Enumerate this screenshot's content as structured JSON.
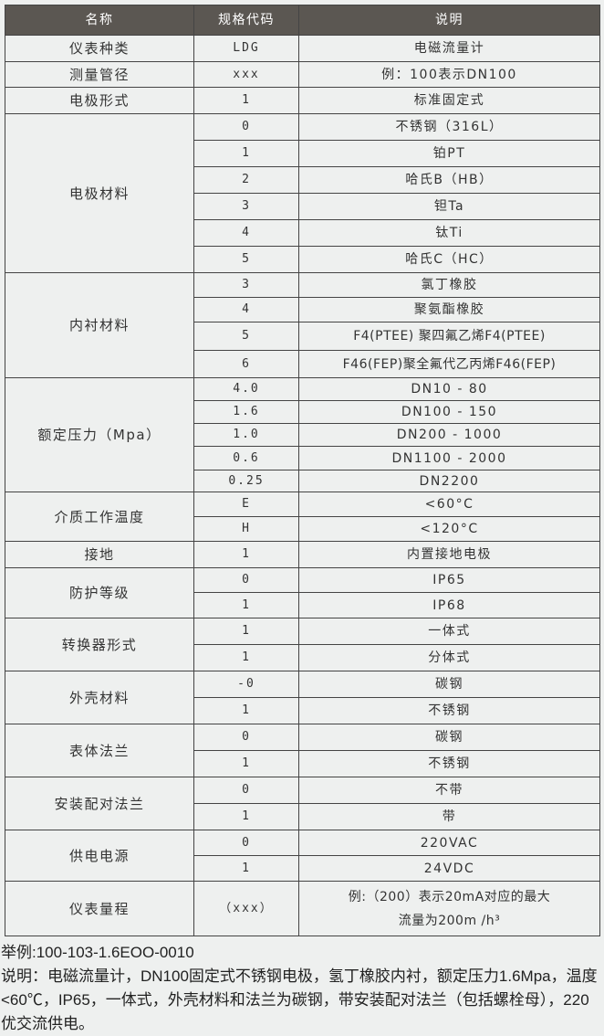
{
  "table": {
    "headers": [
      "名称",
      "规格代码",
      "说明"
    ],
    "groups": [
      {
        "name": "仪表种类",
        "rows": [
          [
            "LDG",
            "电磁流量计"
          ]
        ]
      },
      {
        "name": "测量管径",
        "rows": [
          [
            "xxx",
            "例：100表示DN100"
          ]
        ]
      },
      {
        "name": "电极形式",
        "rows": [
          [
            "1",
            "标准固定式"
          ]
        ]
      },
      {
        "name": "电极材料",
        "rows": [
          [
            "0",
            "不锈钢（316L）"
          ],
          [
            "1",
            "铂PT"
          ],
          [
            "2",
            "哈氏B（HB）"
          ],
          [
            "3",
            "钽Ta"
          ],
          [
            "4",
            "钛Ti"
          ],
          [
            "5",
            "哈氏C（HC）"
          ]
        ]
      },
      {
        "name": "内衬材料",
        "rows": [
          [
            "3",
            "氯丁橡胶"
          ],
          [
            "4",
            "聚氨酯橡胶"
          ],
          [
            "5",
            "F4(PTEE) 聚四氟乙烯F4(PTEE)"
          ],
          [
            "6",
            "F46(FEP)聚全氟代乙丙烯F46(FEP)"
          ]
        ]
      },
      {
        "name": "额定压力（Mpa）",
        "rows": [
          [
            "4.0",
            "DN10 - 80"
          ],
          [
            "1.6",
            "DN100 - 150"
          ],
          [
            "1.0",
            "DN200 - 1000"
          ],
          [
            "0.6",
            "DN1100 - 2000"
          ],
          [
            "0.25",
            "DN2200"
          ]
        ]
      },
      {
        "name": "介质工作温度",
        "rows": [
          [
            "E",
            "<60°C"
          ],
          [
            "H",
            "<120°C"
          ]
        ]
      },
      {
        "name": "接地",
        "rows": [
          [
            "1",
            "内置接地电极"
          ]
        ]
      },
      {
        "name": "防护等级",
        "rows": [
          [
            "0",
            "IP65"
          ],
          [
            "1",
            "IP68"
          ]
        ]
      },
      {
        "name": "转换器形式",
        "rows": [
          [
            "1",
            "一体式"
          ],
          [
            "1",
            "分体式"
          ]
        ]
      },
      {
        "name": "外壳材料",
        "rows": [
          [
            "-0",
            "碳钢"
          ],
          [
            "1",
            "不锈钢"
          ]
        ]
      },
      {
        "name": "表体法兰",
        "rows": [
          [
            "0",
            "碳钢"
          ],
          [
            "1",
            "不锈钢"
          ]
        ]
      },
      {
        "name": "安装配对法兰",
        "rows": [
          [
            "0",
            "不带"
          ],
          [
            "1",
            "带"
          ]
        ]
      },
      {
        "name": "供电电源",
        "rows": [
          [
            "0",
            "220VAC"
          ],
          [
            "1",
            "24VDC"
          ]
        ]
      },
      {
        "name": "仪表量程",
        "rows": [
          [
            "（xxx）",
            "例:（200）表示20mA对应的最大\n流量为200m /h³"
          ]
        ]
      }
    ]
  },
  "notes": {
    "example": "举例:100-103-1.6EOO-0010",
    "description": "说明：电磁流量计，DN100固定式不锈钢电极，氢丁橡胶内衬，额定压力1.6Mpa，温度<60℃，IP65，一体式，外壳材料和法兰为碳钢，带安装配对法兰（包括螺栓母），220优交流供电。"
  }
}
